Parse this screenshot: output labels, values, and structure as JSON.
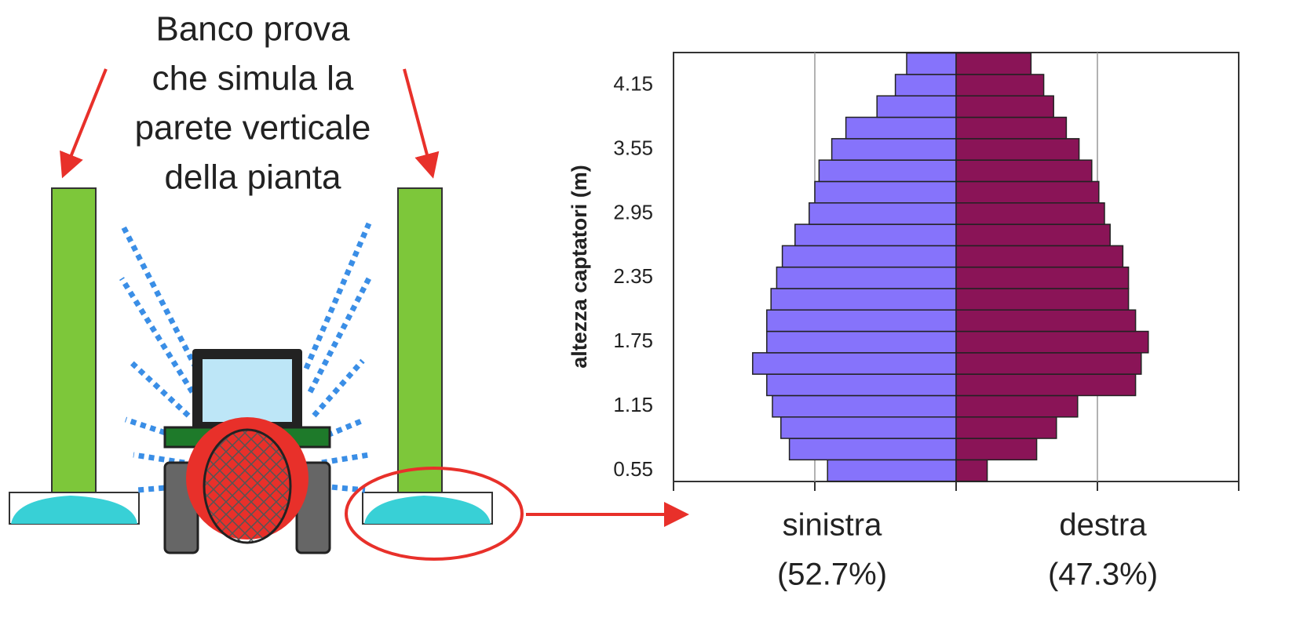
{
  "diagram": {
    "caption_lines": [
      "Banco prova",
      "che simula la",
      "parete verticale",
      "della pianta"
    ]
  },
  "chart_data": {
    "type": "butterfly",
    "y_label": "altezza captatori (m)",
    "categories": [
      "0.55",
      null,
      null,
      "1.15",
      null,
      null,
      "1.75",
      null,
      null,
      "2.35",
      null,
      null,
      "2.95",
      null,
      null,
      "3.55",
      null,
      null,
      "4.15",
      null
    ],
    "series": [
      {
        "name": "sinistra",
        "share_label": "(52.7%)",
        "color": "#8673fb",
        "values": [
          -0.91,
          -1.18,
          -1.24,
          -1.3,
          -1.34,
          -1.44,
          -1.34,
          -1.34,
          -1.31,
          -1.27,
          -1.23,
          -1.14,
          -1.04,
          -1.0,
          -0.97,
          -0.88,
          -0.78,
          -0.56,
          -0.43,
          -0.35
        ]
      },
      {
        "name": "destra",
        "share_label": "(47.3%)",
        "color": "#8a1457",
        "values": [
          0.22,
          0.57,
          0.71,
          0.86,
          1.27,
          1.31,
          1.36,
          1.27,
          1.22,
          1.22,
          1.18,
          1.09,
          1.05,
          1.01,
          0.96,
          0.87,
          0.78,
          0.69,
          0.62,
          0.53
        ]
      }
    ],
    "xlim": [
      -2,
      2
    ],
    "xticks": [
      -2,
      -1,
      0,
      1,
      2
    ],
    "grid": true
  }
}
